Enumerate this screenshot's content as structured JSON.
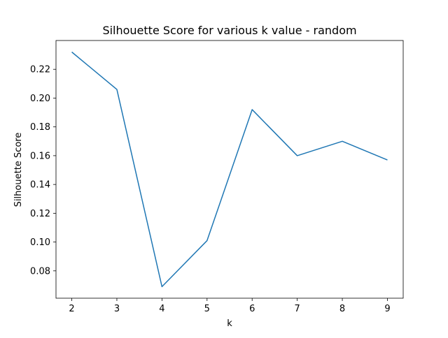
{
  "chart_data": {
    "type": "line",
    "title": "Silhouette Score for various k value - random",
    "xlabel": "k",
    "ylabel": "Silhouette Score",
    "x": [
      2,
      3,
      4,
      5,
      6,
      7,
      8,
      9
    ],
    "series": [
      {
        "values": [
          0.232,
          0.206,
          0.069,
          0.101,
          0.192,
          0.16,
          0.17,
          0.157
        ],
        "color": "#1f77b4"
      }
    ],
    "xticks": [
      "2",
      "3",
      "4",
      "5",
      "6",
      "7",
      "8",
      "9"
    ],
    "yticks": [
      "0.08",
      "0.10",
      "0.12",
      "0.14",
      "0.16",
      "0.18",
      "0.20",
      "0.22"
    ],
    "ytick_values": [
      0.08,
      0.1,
      0.12,
      0.14,
      0.16,
      0.18,
      0.2,
      0.22
    ],
    "xlim": [
      1.65,
      9.35
    ],
    "ylim": [
      0.061,
      0.24
    ],
    "grid": false
  }
}
